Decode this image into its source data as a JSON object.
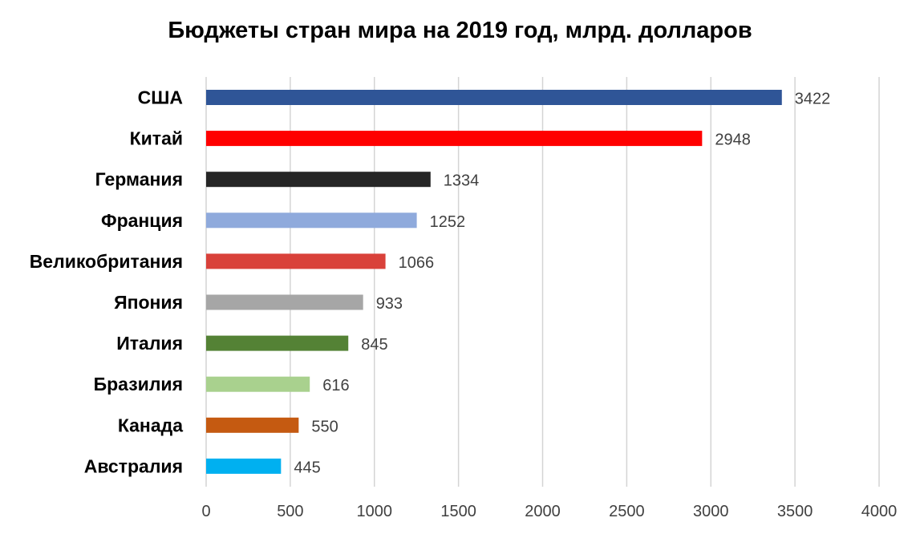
{
  "chart_data": {
    "type": "bar",
    "orientation": "horizontal",
    "title": "Бюджеты стран мира на 2019 год, млрд. долларов",
    "xlabel": "",
    "ylabel": "",
    "categories": [
      "США",
      "Китай",
      "Германия",
      "Франция",
      "Великобритания",
      "Япония",
      "Италия",
      "Бразилия",
      "Канада",
      "Австралия"
    ],
    "values": [
      3422,
      2948,
      1334,
      1252,
      1066,
      933,
      845,
      616,
      550,
      445
    ],
    "data_labels": [
      "3422",
      "2948",
      "1334",
      "1252",
      "1066",
      "933",
      "845",
      "616",
      "550",
      "445"
    ],
    "colors": [
      "#2f5597",
      "#ff0000",
      "#262626",
      "#8faadc",
      "#d9413a",
      "#a6a6a6",
      "#548235",
      "#a9d18e",
      "#c55a11",
      "#00b0f0"
    ],
    "xlim": [
      0,
      4000
    ],
    "x_ticks": [
      0,
      500,
      1000,
      1500,
      2000,
      2500,
      3000,
      3500,
      4000
    ],
    "x_tick_labels": [
      "0",
      "500",
      "1000",
      "1500",
      "2000",
      "2500",
      "3000",
      "3500",
      "4000"
    ],
    "grid": "vertical",
    "legend": "none"
  }
}
